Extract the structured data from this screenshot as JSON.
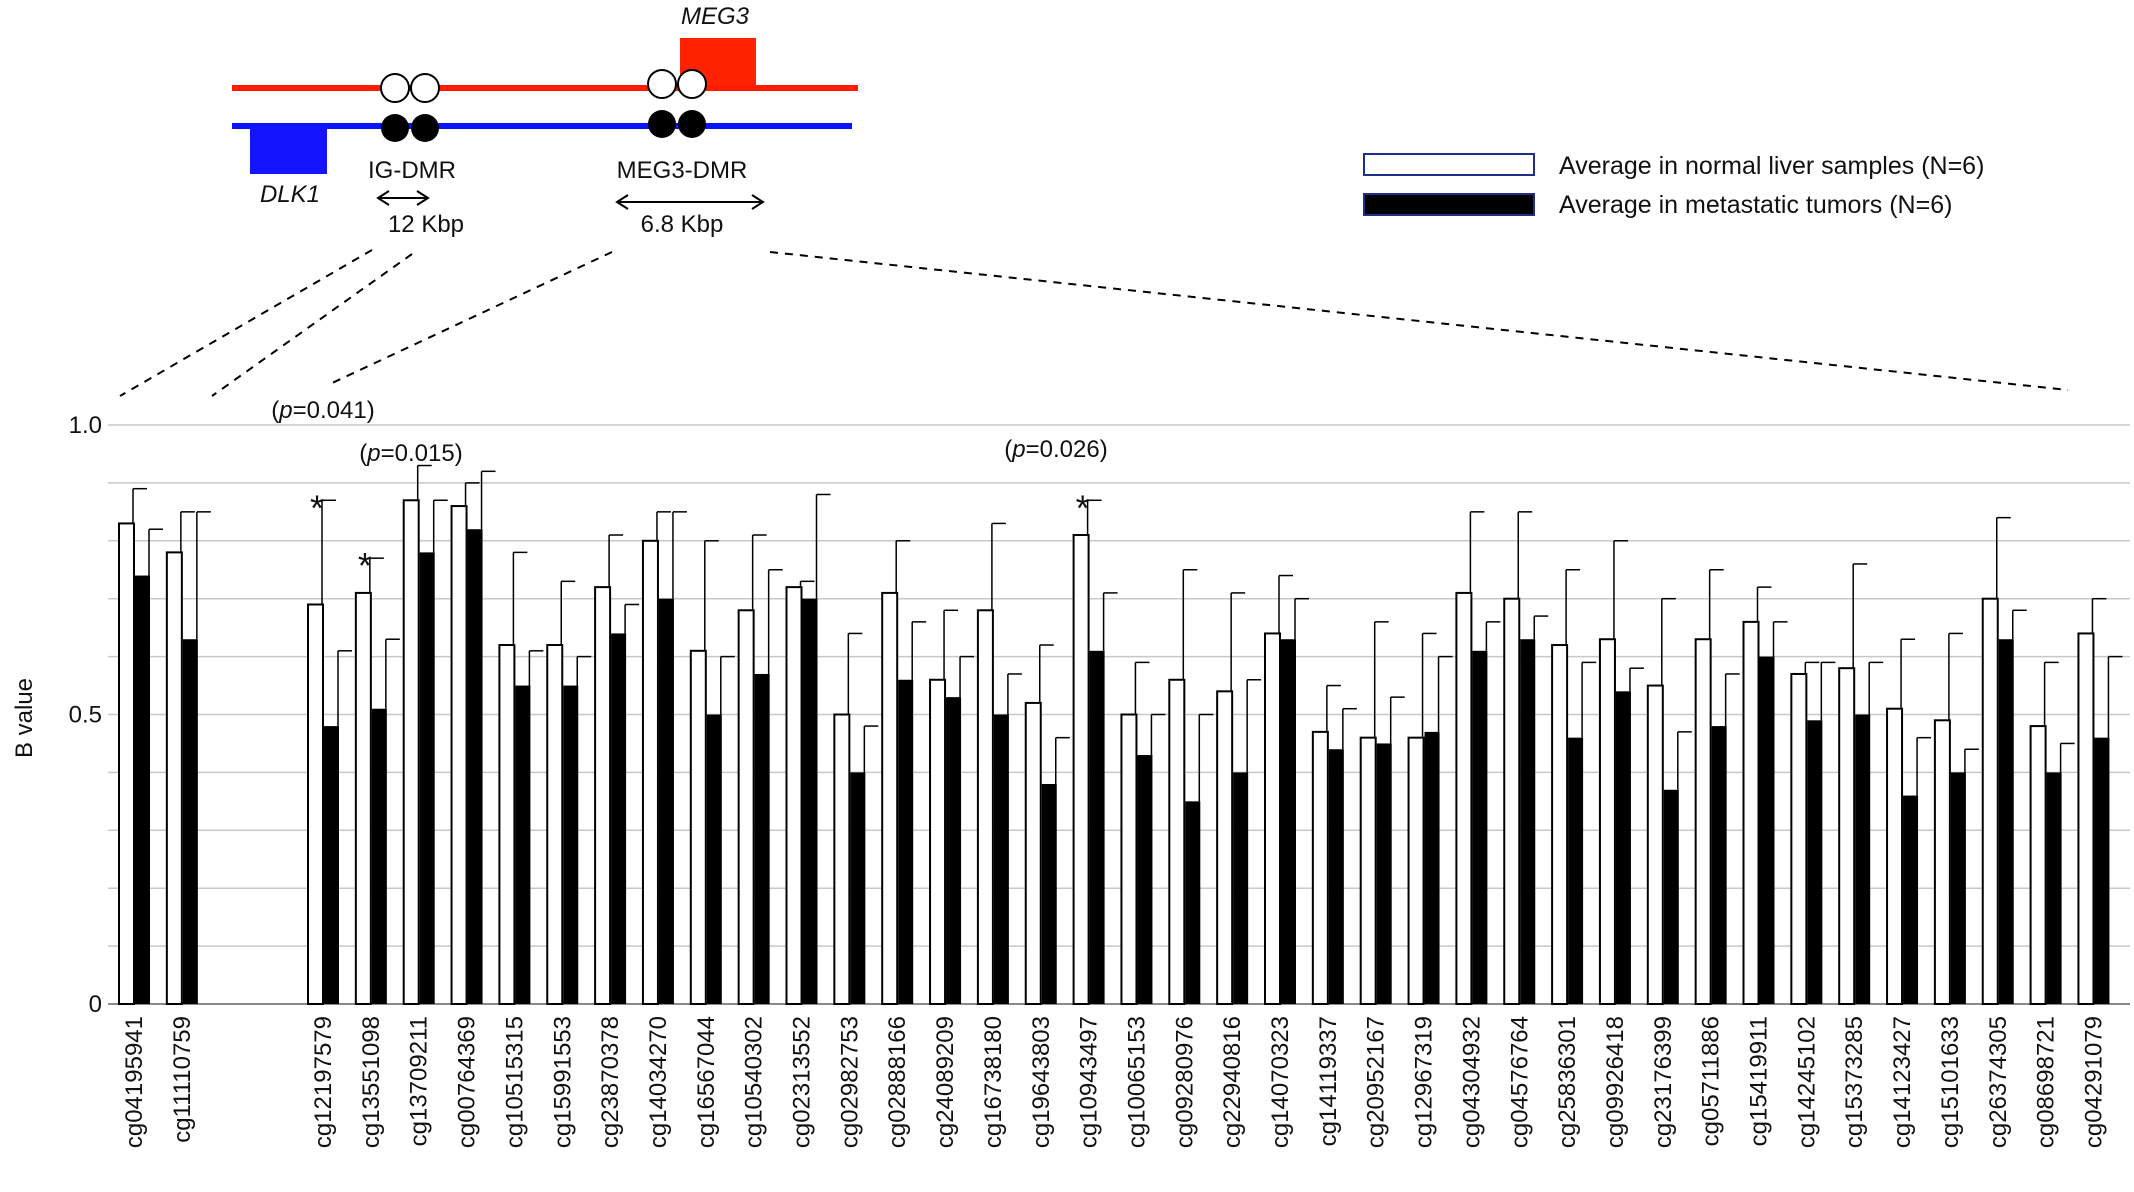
{
  "diagram": {
    "gene_top": "MEG3",
    "gene_bottom": "DLK1",
    "region1_label": "IG-DMR",
    "region1_size": "12 Kbp",
    "region2_label": "MEG3-DMR",
    "region2_size": "6.8 Kbp"
  },
  "colors": {
    "maternal_strand": "#ff1a00",
    "paternal_strand": "#0a14ff",
    "meg3_box": "#ff2200",
    "dlk1_box": "#1414ff",
    "normal_bar": "#ffffff",
    "tumor_bar": "#000000",
    "grid": "#c8c8c8"
  },
  "legend": {
    "normal": "Average in normal liver samples (N=6)",
    "tumor": "Average in metastatic tumors (N=6)"
  },
  "chart_data": {
    "type": "bar",
    "ylabel": "B value",
    "xlabel": "",
    "ylim": [
      0,
      1
    ],
    "yticks": [
      0,
      0.5,
      1.0
    ],
    "ytick_labels": [
      "0",
      "0.5",
      "1.0"
    ],
    "grid": true,
    "legend_position": "top-right",
    "groups": [
      {
        "name": "IG-DMR",
        "categories": [
          "cg04195941",
          "cg11110759"
        ]
      },
      {
        "name": "MEG3-DMR",
        "categories": [
          "cg12197579",
          "cg13551098",
          "cg13709211",
          "cg00764369",
          "cg10515315",
          "cg15991553",
          "cg23870378",
          "cg14034270",
          "cg16567044",
          "cg10540302",
          "cg02313552",
          "cg02982753",
          "cg02888166",
          "cg24089209",
          "cg16738180",
          "cg19643803",
          "cg10943497",
          "cg10065153",
          "cg09280976",
          "cg22940816",
          "cg14070323",
          "cg14119337",
          "cg20952167",
          "cg12967319",
          "cg04304932",
          "cg04576764",
          "cg25836301",
          "cg09926418",
          "cg23176399",
          "cg05711886",
          "cg15419911",
          "cg14245102",
          "cg15373285",
          "cg14123427",
          "cg15101633",
          "cg26374305",
          "cg08698721",
          "cg04291079"
        ]
      }
    ],
    "categories": [
      "cg04195941",
      "cg11110759",
      "cg12197579",
      "cg13551098",
      "cg13709211",
      "cg00764369",
      "cg10515315",
      "cg15991553",
      "cg23870378",
      "cg14034270",
      "cg16567044",
      "cg10540302",
      "cg02313552",
      "cg02982753",
      "cg02888166",
      "cg24089209",
      "cg16738180",
      "cg19643803",
      "cg10943497",
      "cg10065153",
      "cg09280976",
      "cg22940816",
      "cg14070323",
      "cg14119337",
      "cg20952167",
      "cg12967319",
      "cg04304932",
      "cg04576764",
      "cg25836301",
      "cg09926418",
      "cg23176399",
      "cg05711886",
      "cg15419911",
      "cg14245102",
      "cg15373285",
      "cg14123427",
      "cg15101633",
      "cg26374305",
      "cg08698721",
      "cg04291079"
    ],
    "series": [
      {
        "name": "Average in normal liver samples (N=6)",
        "values": [
          0.83,
          0.78,
          0.69,
          0.71,
          0.87,
          0.86,
          0.62,
          0.62,
          0.72,
          0.8,
          0.61,
          0.68,
          0.72,
          0.5,
          0.71,
          0.56,
          0.68,
          0.52,
          0.81,
          0.5,
          0.56,
          0.54,
          0.64,
          0.47,
          0.46,
          0.46,
          0.71,
          0.7,
          0.62,
          0.63,
          0.55,
          0.63,
          0.66,
          0.57,
          0.58,
          0.51,
          0.49,
          0.7,
          0.48,
          0.64
        ],
        "errors": [
          0.06,
          0.07,
          0.18,
          0.06,
          0.06,
          0.04,
          0.16,
          0.11,
          0.09,
          0.05,
          0.19,
          0.13,
          0.01,
          0.14,
          0.09,
          0.12,
          0.15,
          0.1,
          0.06,
          0.09,
          0.19,
          0.17,
          0.1,
          0.08,
          0.2,
          0.18,
          0.14,
          0.15,
          0.13,
          0.17,
          0.15,
          0.12,
          0.06,
          0.02,
          0.18,
          0.12,
          0.15,
          0.14,
          0.11,
          0.06
        ]
      },
      {
        "name": "Average in metastatic tumors (N=6)",
        "values": [
          0.74,
          0.63,
          0.48,
          0.51,
          0.78,
          0.82,
          0.55,
          0.55,
          0.64,
          0.7,
          0.5,
          0.57,
          0.7,
          0.4,
          0.56,
          0.53,
          0.5,
          0.38,
          0.61,
          0.43,
          0.35,
          0.4,
          0.63,
          0.44,
          0.45,
          0.47,
          0.61,
          0.63,
          0.46,
          0.54,
          0.37,
          0.48,
          0.6,
          0.49,
          0.5,
          0.36,
          0.4,
          0.63,
          0.4,
          0.46
        ],
        "errors": [
          0.08,
          0.22,
          0.13,
          0.12,
          0.09,
          0.1,
          0.06,
          0.05,
          0.05,
          0.15,
          0.1,
          0.18,
          0.18,
          0.08,
          0.1,
          0.07,
          0.07,
          0.08,
          0.1,
          0.07,
          0.15,
          0.16,
          0.07,
          0.07,
          0.08,
          0.13,
          0.05,
          0.04,
          0.13,
          0.04,
          0.1,
          0.09,
          0.06,
          0.1,
          0.09,
          0.1,
          0.04,
          0.05,
          0.05,
          0.14
        ]
      }
    ],
    "annotations": [
      {
        "category": "cg12197579",
        "marker": "*",
        "p_prefix": "(",
        "p_italic": "p",
        "p_suffix": "=0.041)"
      },
      {
        "category": "cg13551098",
        "marker": "*",
        "p_prefix": "(",
        "p_italic": "p",
        "p_suffix": "=0.015)"
      },
      {
        "category": "cg10943497",
        "marker": "*",
        "p_prefix": "(",
        "p_italic": "p",
        "p_suffix": "=0.026)"
      }
    ]
  }
}
